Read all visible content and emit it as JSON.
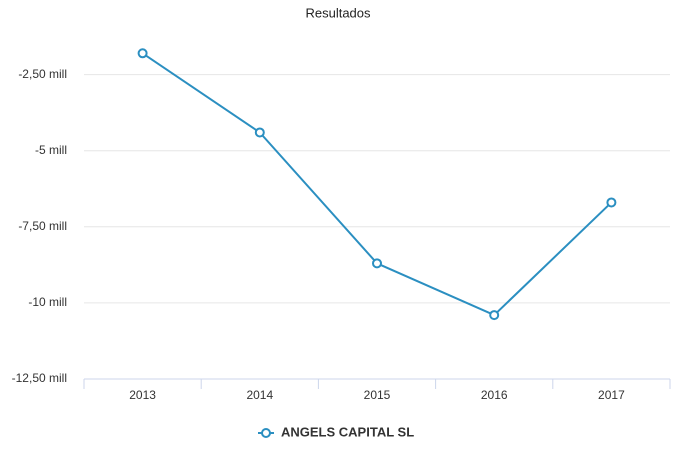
{
  "chart_data": {
    "type": "line",
    "title": "Resultados",
    "categories": [
      "2013",
      "2014",
      "2015",
      "2016",
      "2017"
    ],
    "series": [
      {
        "name": "ANGELS CAPITAL SL",
        "color": "#2b8fc1",
        "values": [
          -1.8,
          -4.4,
          -8.7,
          -10.4,
          -6.7
        ]
      }
    ],
    "ylim": [
      -12.5,
      -1.1
    ],
    "yticks": [
      {
        "value": -2.5,
        "label": "-2,50 mill"
      },
      {
        "value": -5,
        "label": "-5 mill"
      },
      {
        "value": -7.5,
        "label": "-7,50 mill"
      },
      {
        "value": -10,
        "label": "-10 mill"
      },
      {
        "value": -12.5,
        "label": "-12,50 mill"
      }
    ],
    "grid": true,
    "legend": "bottom"
  }
}
